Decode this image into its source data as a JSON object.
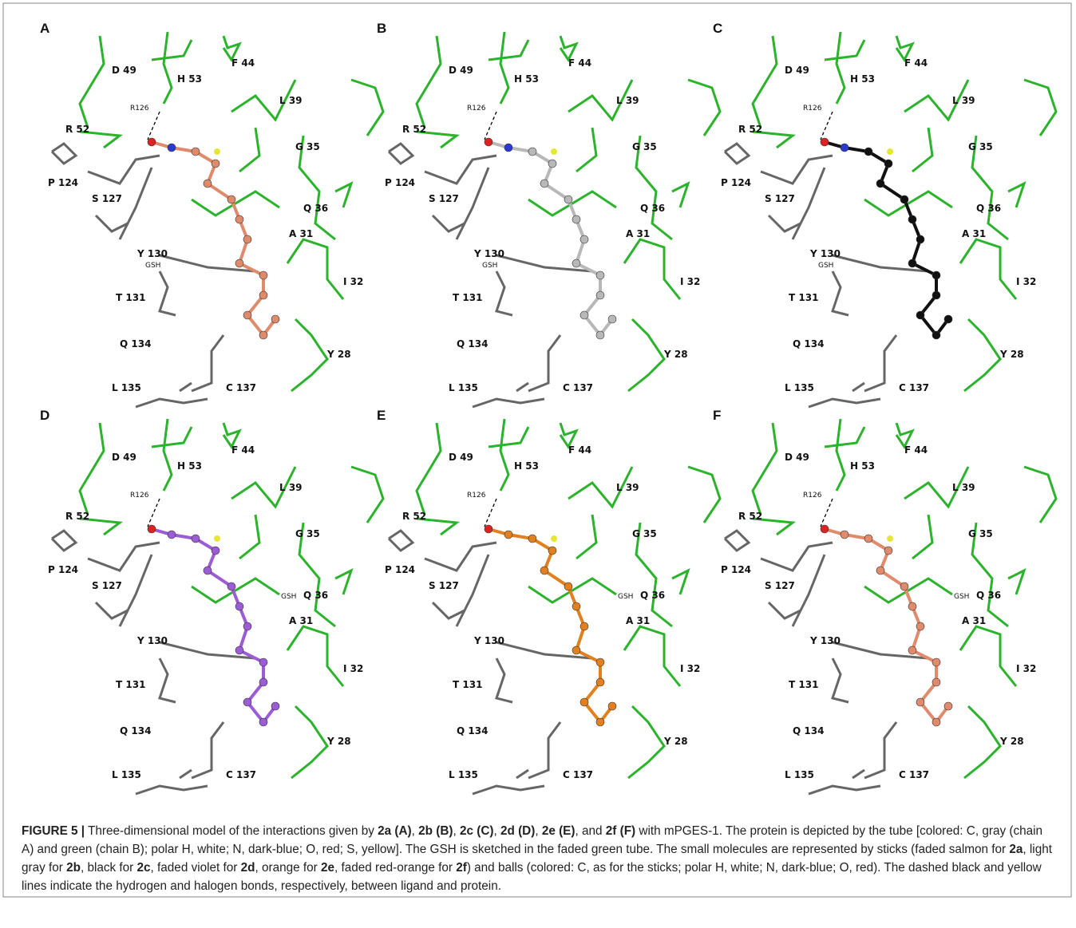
{
  "panels": [
    {
      "letter": "A",
      "labels": [
        "D 49",
        "H 53",
        "F 44",
        "L 39",
        "R126",
        "R 52",
        "G 35",
        "P 124",
        "S 127",
        "Q 36",
        "A 31",
        "Y 130",
        "GSH",
        "I 32",
        "T 131",
        "Q 134",
        "Y 28",
        "L 135",
        "C 137"
      ]
    },
    {
      "letter": "B",
      "labels": [
        "D 49",
        "H 53",
        "F 44",
        "L 39",
        "R126",
        "R 52",
        "G 35",
        "P 124",
        "S 127",
        "Q 36",
        "A 31",
        "Y 130",
        "GSH",
        "I 32",
        "T 131",
        "Q 134",
        "Y 28",
        "L 135",
        "C 137"
      ]
    },
    {
      "letter": "C",
      "labels": [
        "D 49",
        "H 53",
        "F 44",
        "L 39",
        "R126",
        "R 52",
        "G 35",
        "P 124",
        "S 127",
        "Q 36",
        "A 31",
        "Y 130",
        "GSH",
        "I 32",
        "T 131",
        "Q 134",
        "Y 28",
        "L 135",
        "C 137"
      ]
    },
    {
      "letter": "D",
      "labels": [
        "D 49",
        "H 53",
        "F 44",
        "L 39",
        "R126",
        "R 52",
        "G 35",
        "P 124",
        "S 127",
        "Q 36",
        "A 31",
        "Y 130",
        "GSH",
        "I 32",
        "T 131",
        "Q 134",
        "Y 28",
        "L 135",
        "C 137"
      ]
    },
    {
      "letter": "E",
      "labels": [
        "D 49",
        "H 53",
        "F 44",
        "L 39",
        "R126",
        "R 52",
        "G 35",
        "P 124",
        "S 127",
        "Q 36",
        "A 31",
        "Y 130",
        "GSH",
        "I 32",
        "T 131",
        "Q 134",
        "Y 28",
        "L 135",
        "C 137"
      ]
    },
    {
      "letter": "F",
      "labels": [
        "D 49",
        "H 53",
        "F 44",
        "L 39",
        "R126",
        "R 52",
        "G 35",
        "P 124",
        "S 127",
        "Q 36",
        "A 31",
        "Y 130",
        "GSH",
        "I 32",
        "T 131",
        "Q 134",
        "Y 28",
        "L 135",
        "C 137"
      ]
    }
  ],
  "caption": [
    "FIGURE 5 |",
    " Three-dimensional model of the interactions given by ",
    "2a (A)",
    ", ",
    "2b (B)",
    ", ",
    "2c (C)",
    ", ",
    "2d (D)",
    ", ",
    "2e (E)",
    ", and ",
    "2f (F)",
    " with mPGES-1. The protein is depicted by the tube [colored: C, gray (chain A) and green (chain B); polar H, white; N, dark-blue; O, red; S, yellow]. The GSH is sketched in the faded green tube. The small molecules are represented by sticks (faded salmon for ",
    "2a",
    ", light gray for ",
    "2b",
    ", black for ",
    "2c",
    ", faded violet for ",
    "2d",
    ", orange for ",
    "2e",
    ", faded red-orange for ",
    "2f",
    ") and balls (colored: C, as for the sticks; polar H, white; N, dark-blue; O, red). The dashed black and yellow lines indicate the hydrogen and halogen bonds, respectively, between ligand and protein."
  ]
}
